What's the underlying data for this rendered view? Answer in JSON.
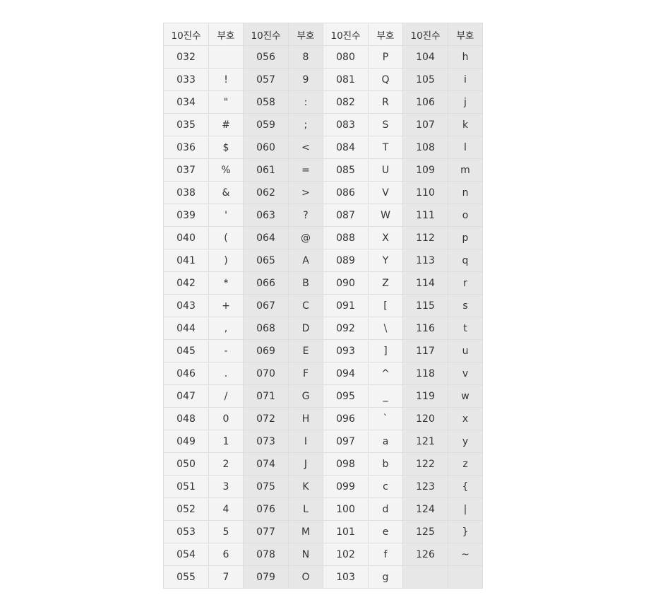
{
  "headers": [
    "10진수",
    "부호",
    "10진수",
    "부호",
    "10진수",
    "부호",
    "10진수",
    "부호"
  ],
  "rows": [
    [
      "032",
      "",
      "056",
      "8",
      "080",
      "P",
      "104",
      "h"
    ],
    [
      "033",
      "!",
      "057",
      "9",
      "081",
      "Q",
      "105",
      "i"
    ],
    [
      "034",
      "\"",
      "058",
      ":",
      "082",
      "R",
      "106",
      "j"
    ],
    [
      "035",
      "#",
      "059",
      ";",
      "083",
      "S",
      "107",
      "k"
    ],
    [
      "036",
      "$",
      "060",
      "<",
      "084",
      "T",
      "108",
      "l"
    ],
    [
      "037",
      "%",
      "061",
      "=",
      "085",
      "U",
      "109",
      "m"
    ],
    [
      "038",
      "&",
      "062",
      ">",
      "086",
      "V",
      "110",
      "n"
    ],
    [
      "039",
      "'",
      "063",
      "?",
      "087",
      "W",
      "111",
      "o"
    ],
    [
      "040",
      "(",
      "064",
      "@",
      "088",
      "X",
      "112",
      "p"
    ],
    [
      "041",
      ")",
      "065",
      "A",
      "089",
      "Y",
      "113",
      "q"
    ],
    [
      "042",
      "*",
      "066",
      "B",
      "090",
      "Z",
      "114",
      "r"
    ],
    [
      "043",
      "+",
      "067",
      "C",
      "091",
      "[",
      "115",
      "s"
    ],
    [
      "044",
      ",",
      "068",
      "D",
      "092",
      "\\",
      "116",
      "t"
    ],
    [
      "045",
      "-",
      "069",
      "E",
      "093",
      "]",
      "117",
      "u"
    ],
    [
      "046",
      ".",
      "070",
      "F",
      "094",
      "^",
      "118",
      "v"
    ],
    [
      "047",
      "/",
      "071",
      "G",
      "095",
      "_",
      "119",
      "w"
    ],
    [
      "048",
      "0",
      "072",
      "H",
      "096",
      "`",
      "120",
      "x"
    ],
    [
      "049",
      "1",
      "073",
      "I",
      "097",
      "a",
      "121",
      "y"
    ],
    [
      "050",
      "2",
      "074",
      "J",
      "098",
      "b",
      "122",
      "z"
    ],
    [
      "051",
      "3",
      "075",
      "K",
      "099",
      "c",
      "123",
      "{"
    ],
    [
      "052",
      "4",
      "076",
      "L",
      "100",
      "d",
      "124",
      "|"
    ],
    [
      "053",
      "5",
      "077",
      "M",
      "101",
      "e",
      "125",
      "}"
    ],
    [
      "054",
      "6",
      "078",
      "N",
      "102",
      "f",
      "126",
      "~"
    ],
    [
      "055",
      "7",
      "079",
      "O",
      "103",
      "g",
      "",
      ""
    ]
  ],
  "colors": {
    "light_group": "#f4f4f4",
    "dark_group": "#e7e7e7",
    "border": "#dddddd",
    "text": "#333333"
  }
}
